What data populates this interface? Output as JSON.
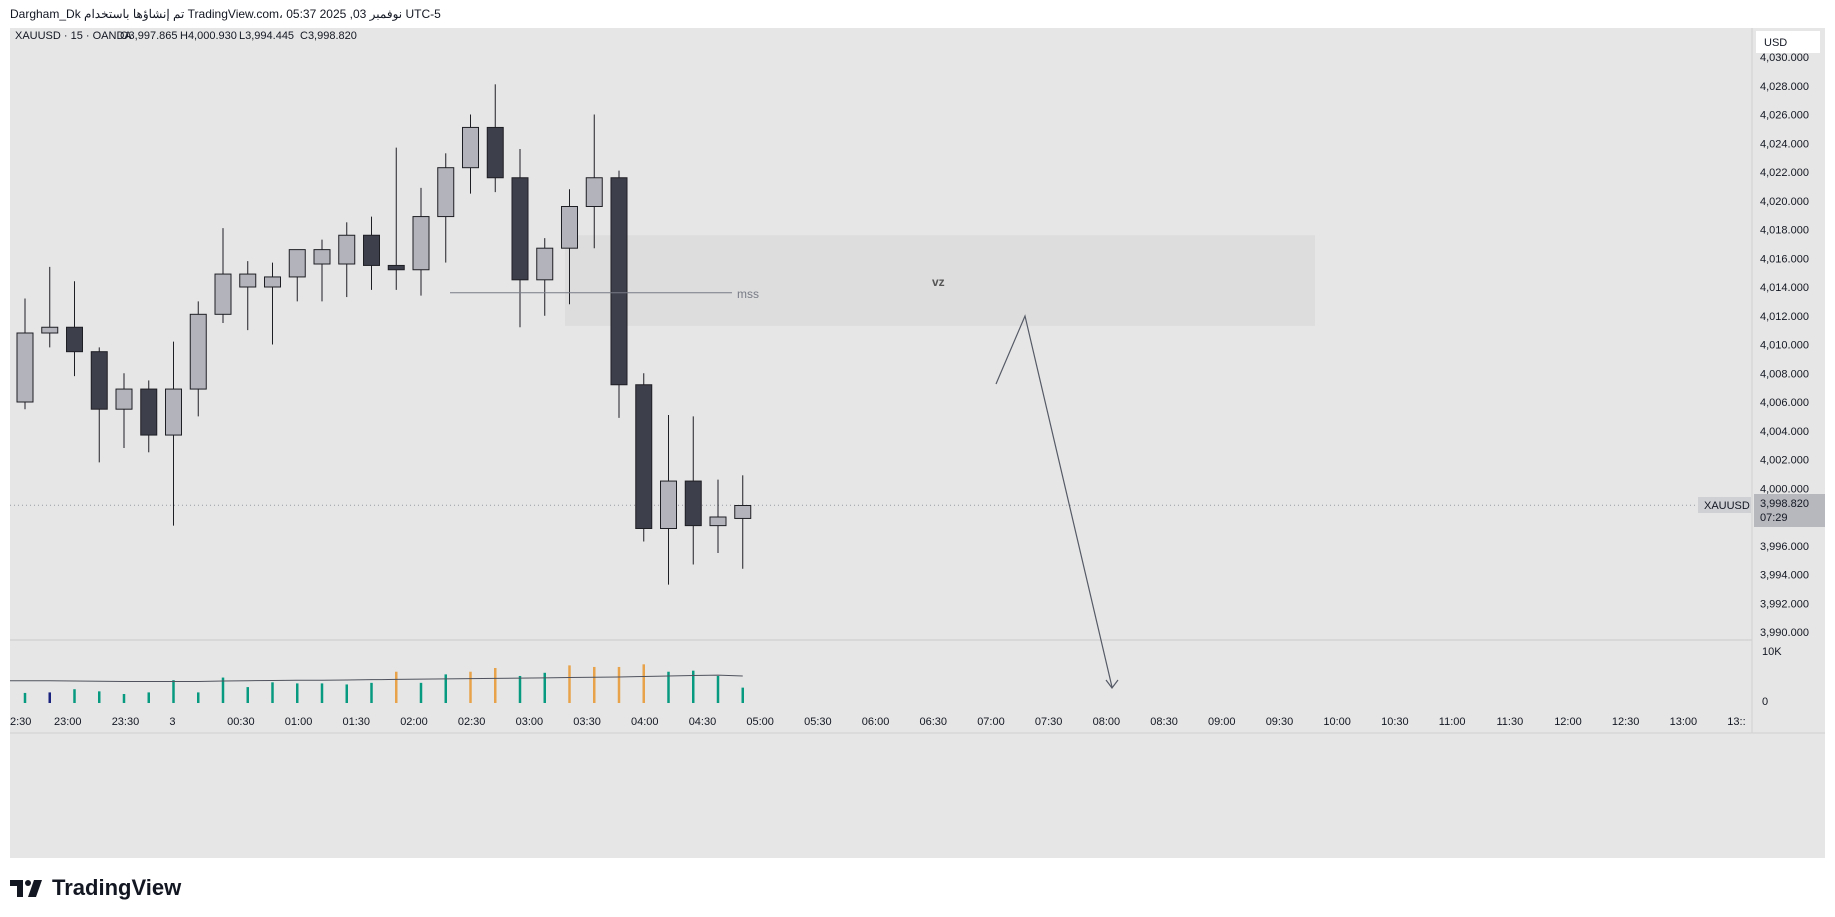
{
  "header": {
    "attribution": "Dargham_Dk تم إنشاؤها باستخدام TradingView.com، 05:37 2025 ,03 نوفمبر UTC-5"
  },
  "legend": {
    "symbol": "XAUUSD · 15 · OANDA",
    "open": "O3,997.865",
    "high": "H4,000.930",
    "low": "L3,994.445",
    "close": "C3,998.820"
  },
  "price_scale": {
    "currency": "USD",
    "last_price_tag_symbol": "XAUUSD",
    "last_price_tag_value": "3,998.820",
    "countdown": "07:29"
  },
  "volume_scale": {
    "top": "10K",
    "bottom": "0"
  },
  "annotations": {
    "mss_label": "mss",
    "zone_label": "vz"
  },
  "footer": {
    "logo_text": "TradingView"
  },
  "colors": {
    "background": "#e6e6e6",
    "bull_candle": "#b3b4bb",
    "bear_candle": "#3d3f4a",
    "volume_green": "#089981",
    "volume_orange": "#e8a34a",
    "volume_blue": "#1a237e",
    "zone": "#dadada"
  },
  "chart_data": {
    "type": "candlestick",
    "title": "XAUUSD · 15 · OANDA",
    "interval": "15",
    "y_ticks": [
      3990,
      3992,
      3994,
      3996,
      3998,
      4000,
      4002,
      4004,
      4006,
      4008,
      4010,
      4012,
      4014,
      4016,
      4018,
      4020,
      4022,
      4024,
      4026,
      4028,
      4030
    ],
    "y_tick_labels": [
      "3,990.000",
      "3,992.000",
      "3,994.000",
      "3,996.000",
      "3,998.000",
      "4,000.000",
      "4,002.000",
      "4,004.000",
      "4,006.000",
      "4,008.000",
      "4,010.000",
      "4,012.000",
      "4,014.000",
      "4,016.000",
      "4,018.000",
      "4,020.000",
      "4,022.000",
      "4,024.000",
      "4,026.000",
      "4,028.000",
      "4,030.000"
    ],
    "ylim": [
      3989.6,
      4030.8
    ],
    "x_tick_labels": [
      "2:30",
      "23:00",
      "23:30",
      "3",
      "00:30",
      "01:00",
      "01:30",
      "02:00",
      "02:30",
      "03:00",
      "03:30",
      "04:00",
      "04:30",
      "05:00",
      "05:30",
      "06:00",
      "06:30",
      "07:00",
      "07:30",
      "08:00",
      "08:30",
      "09:00",
      "09:30",
      "10:00",
      "10:30",
      "11:00",
      "11:30",
      "12:00",
      "12:30",
      "13:00",
      "13::"
    ],
    "candles": [
      {
        "o": 4006.0,
        "h": 4013.2,
        "l": 4005.5,
        "c": 4010.8
      },
      {
        "o": 4010.8,
        "h": 4015.4,
        "l": 4009.8,
        "c": 4011.2
      },
      {
        "o": 4011.2,
        "h": 4014.4,
        "l": 4007.8,
        "c": 4009.5
      },
      {
        "o": 4009.5,
        "h": 4009.8,
        "l": 4001.8,
        "c": 4005.5
      },
      {
        "o": 4005.5,
        "h": 4008.0,
        "l": 4002.8,
        "c": 4006.9
      },
      {
        "o": 4006.9,
        "h": 4007.5,
        "l": 4002.5,
        "c": 4003.7
      },
      {
        "o": 4003.7,
        "h": 4010.2,
        "l": 3997.4,
        "c": 4006.9
      },
      {
        "o": 4006.9,
        "h": 4013.0,
        "l": 4005.0,
        "c": 4012.1
      },
      {
        "o": 4012.1,
        "h": 4018.1,
        "l": 4011.5,
        "c": 4014.9
      },
      {
        "o": 4014.0,
        "h": 4015.8,
        "l": 4011.0,
        "c": 4014.9
      },
      {
        "o": 4014.0,
        "h": 4015.7,
        "l": 4010.0,
        "c": 4014.7
      },
      {
        "o": 4014.7,
        "h": 4016.4,
        "l": 4013.0,
        "c": 4016.6
      },
      {
        "o": 4015.6,
        "h": 4017.3,
        "l": 4013.0,
        "c": 4016.6
      },
      {
        "o": 4015.6,
        "h": 4018.5,
        "l": 4013.3,
        "c": 4017.6
      },
      {
        "o": 4017.6,
        "h": 4018.9,
        "l": 4013.8,
        "c": 4015.5
      },
      {
        "o": 4015.5,
        "h": 4023.7,
        "l": 4013.8,
        "c": 4015.2
      },
      {
        "o": 4015.2,
        "h": 4020.9,
        "l": 4013.4,
        "c": 4018.9
      },
      {
        "o": 4018.9,
        "h": 4023.3,
        "l": 4015.7,
        "c": 4022.3
      },
      {
        "o": 4022.3,
        "h": 4026.0,
        "l": 4020.5,
        "c": 4025.1
      },
      {
        "o": 4025.1,
        "h": 4028.1,
        "l": 4020.6,
        "c": 4021.6
      },
      {
        "o": 4021.6,
        "h": 4023.6,
        "l": 4011.2,
        "c": 4014.5
      },
      {
        "o": 4014.5,
        "h": 4017.4,
        "l": 4012.0,
        "c": 4016.7
      },
      {
        "o": 4016.7,
        "h": 4020.8,
        "l": 4012.8,
        "c": 4019.6
      },
      {
        "o": 4019.6,
        "h": 4026.0,
        "l": 4016.7,
        "c": 4021.6
      },
      {
        "o": 4021.6,
        "h": 4022.1,
        "l": 4004.9,
        "c": 4007.2
      },
      {
        "o": 4007.2,
        "h": 4008.0,
        "l": 3996.3,
        "c": 3997.2
      },
      {
        "o": 3997.2,
        "h": 4005.1,
        "l": 3993.3,
        "c": 4000.5
      },
      {
        "o": 4000.5,
        "h": 4005.0,
        "l": 3994.7,
        "c": 3997.4
      },
      {
        "o": 3997.4,
        "h": 4000.6,
        "l": 3995.5,
        "c": 3998.0
      },
      {
        "o": 3997.9,
        "h": 4000.9,
        "l": 3994.4,
        "c": 3998.8
      }
    ],
    "volume": {
      "ylim": [
        0,
        10000
      ],
      "values": [
        1900,
        2000,
        2600,
        2200,
        1700,
        2000,
        4300,
        2000,
        4800,
        3000,
        3900,
        3700,
        3700,
        3500,
        3800,
        5900,
        3800,
        5400,
        5900,
        6600,
        5100,
        5700,
        7100,
        6800,
        6800,
        7300,
        5900,
        6100,
        5100,
        2900
      ],
      "colors": [
        "green",
        "blue",
        "green",
        "green",
        "green",
        "green",
        "green",
        "green",
        "green",
        "green",
        "green",
        "green",
        "green",
        "green",
        "green",
        "orange",
        "green",
        "green",
        "orange",
        "orange",
        "green",
        "green",
        "orange",
        "orange",
        "orange",
        "orange",
        "green",
        "green",
        "green",
        "green"
      ],
      "ma": [
        4200,
        4200,
        4150,
        4100,
        4050,
        4050,
        4050,
        4050,
        4150,
        4200,
        4250,
        4300,
        4300,
        4350,
        4400,
        4450,
        4500,
        4550,
        4600,
        4650,
        4700,
        4750,
        4800,
        4850,
        4900,
        5000,
        5100,
        5200,
        5250,
        5100
      ]
    },
    "last_price": 3998.82,
    "mss_level": 4013.6,
    "zone": {
      "top": 4017.6,
      "bottom": 4011.3
    }
  }
}
